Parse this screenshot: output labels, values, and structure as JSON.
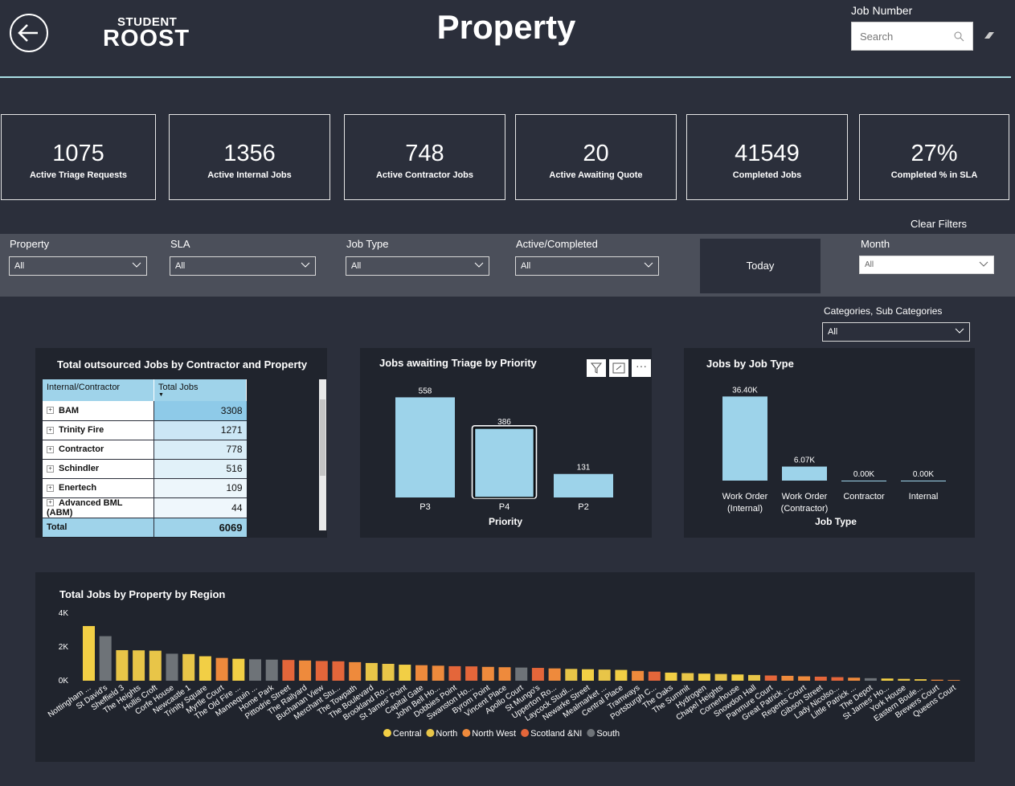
{
  "header": {
    "logo_top": "STUDENT",
    "logo_bottom": "ROOST",
    "title": "Property",
    "search_label": "Job Number",
    "search_placeholder": "Search"
  },
  "kpis": [
    {
      "value": 1075,
      "label": "Active Triage Requests"
    },
    {
      "value": 1356,
      "label": "Active Internal Jobs"
    },
    {
      "value": 748,
      "label": "Active Contractor Jobs"
    },
    {
      "value": 20,
      "label": "Active Awaiting Quote"
    },
    {
      "value": 41549,
      "label": "Completed Jobs"
    },
    {
      "value": 27,
      "value_label": "27%",
      "label": "Completed % in SLA"
    }
  ],
  "clear_filters": "Clear Filters",
  "filters": [
    {
      "label": "Property",
      "value": "All"
    },
    {
      "label": "SLA",
      "value": "All"
    },
    {
      "label": "Job Type",
      "value": "All"
    },
    {
      "label": "Active/Completed",
      "value": "All"
    }
  ],
  "today_button": "Today",
  "month_filter": {
    "label": "Month",
    "value": "All"
  },
  "category_filter": {
    "label": "Categories, Sub Categories",
    "value": "All"
  },
  "table": {
    "title": "Total outsourced Jobs by Contractor and Property",
    "columns": [
      "Internal/Contractor",
      "Total Jobs"
    ],
    "rows": [
      [
        "BAM",
        3308
      ],
      [
        "Trinity Fire",
        1271
      ],
      [
        "Contractor",
        778
      ],
      [
        "Schindler",
        516
      ],
      [
        "Enertech",
        109
      ],
      [
        "Advanced BML (ABM)",
        44
      ]
    ],
    "total": [
      "Total",
      6069
    ]
  },
  "triage_chart": {
    "type": "bar",
    "title": "Jobs awaiting Triage by Priority",
    "x_label": "Priority",
    "categories": [
      "P3",
      "P4",
      "P2"
    ],
    "values": [
      558,
      386,
      131
    ],
    "color": "#9dd3ea",
    "ylim": [
      0,
      600
    ]
  },
  "jobtype_chart": {
    "type": "bar",
    "title": "Jobs by Job Type",
    "x_label": "Job Type",
    "categories": [
      "Work Order (Internal)",
      "Work Order (Contractor)",
      "Contractor",
      "Internal"
    ],
    "values": [
      36400,
      6070,
      0,
      0
    ],
    "value_labels": [
      "36.40K",
      "6.07K",
      "0.00K",
      "0.00K"
    ],
    "color": "#9dd3ea",
    "ylim": [
      0,
      40000
    ]
  },
  "region_chart": {
    "type": "bar",
    "title": "Total Jobs by Property by Region",
    "categories": [
      "Nottingham ...",
      "St David's",
      "Sheffield 3",
      "The Heights",
      "Hollis Croft",
      "Corfe House",
      "Newcastle 1",
      "Trinity Square",
      "Myrtle Court",
      "The Old Fire ...",
      "Mannequin ...",
      "Home Park",
      "Pittodrie Street",
      "The Railyard",
      "Buchanan View",
      "Merchant Stu...",
      "The Towpath",
      "The Boulevard",
      "Brookland Ro...",
      "St James' Point",
      "Capital Gate",
      "John Bell Ho...",
      "Dobbies Point",
      "Swanston Ho...",
      "Byrom Point",
      "Vincent Place",
      "Apollo Court",
      "St Mungo's",
      "Upperton Ro...",
      "Laycock Studi...",
      "Newarke Street",
      "Mealmarket ...",
      "Central Place",
      "Tramways",
      "Portsburgh C...",
      "The Oaks",
      "The Summit",
      "Hydrogen",
      "Chapel Heights",
      "Cornerhouse",
      "Snowdon Hall",
      "Panmure Court",
      "Great Patrick ...",
      "Regents Court",
      "Gibson Street",
      "Lady Nicolso...",
      "Little Patrick ...",
      "The Depot",
      "St James' Ho...",
      "York House",
      "Eastern Boule...",
      "Brewers Court",
      "Queens Court"
    ],
    "series": [
      {
        "name": "Central",
        "color": "#f2cf45",
        "values": [
          3240,
          null,
          null,
          null,
          null,
          null,
          null,
          1450,
          null,
          1300,
          null,
          null,
          null,
          null,
          null,
          null,
          null,
          null,
          null,
          950,
          null,
          null,
          null,
          null,
          null,
          null,
          null,
          null,
          null,
          null,
          680,
          null,
          640,
          null,
          null,
          480,
          null,
          420,
          null,
          370,
          null,
          null,
          null,
          null,
          null,
          null,
          null,
          null,
          130,
          null,
          null,
          null,
          null
        ]
      },
      {
        "name": "North",
        "color": "#e8c548",
        "values": [
          null,
          null,
          1810,
          1800,
          1780,
          null,
          1580,
          null,
          null,
          null,
          null,
          null,
          null,
          null,
          null,
          null,
          null,
          1050,
          1000,
          null,
          null,
          null,
          null,
          null,
          null,
          null,
          null,
          null,
          null,
          700,
          null,
          660,
          null,
          null,
          null,
          null,
          450,
          null,
          400,
          null,
          340,
          null,
          null,
          null,
          null,
          null,
          null,
          null,
          null,
          110,
          90,
          null,
          null
        ]
      },
      {
        "name": "North West",
        "color": "#ee8a3c",
        "values": [
          null,
          null,
          null,
          null,
          null,
          null,
          null,
          null,
          1350,
          null,
          null,
          null,
          null,
          1200,
          null,
          null,
          1100,
          null,
          null,
          null,
          920,
          890,
          null,
          null,
          820,
          800,
          null,
          null,
          730,
          null,
          null,
          null,
          null,
          580,
          null,
          null,
          null,
          null,
          null,
          null,
          null,
          null,
          290,
          260,
          null,
          null,
          180,
          null,
          null,
          null,
          null,
          60,
          40
        ]
      },
      {
        "name": "Scotland &NI",
        "color": "#e4663a",
        "values": [
          null,
          null,
          null,
          null,
          null,
          null,
          null,
          null,
          null,
          null,
          null,
          null,
          1230,
          null,
          1170,
          1150,
          null,
          null,
          null,
          null,
          null,
          null,
          860,
          850,
          null,
          null,
          null,
          760,
          null,
          null,
          null,
          null,
          null,
          null,
          540,
          null,
          null,
          null,
          null,
          null,
          null,
          310,
          null,
          null,
          240,
          210,
          null,
          null,
          null,
          null,
          null,
          null,
          null
        ]
      },
      {
        "name": "South",
        "color": "#6e7378",
        "values": [
          null,
          2640,
          null,
          null,
          null,
          1600,
          null,
          null,
          null,
          null,
          1270,
          1250,
          null,
          null,
          null,
          null,
          null,
          null,
          null,
          null,
          null,
          null,
          null,
          null,
          null,
          null,
          780,
          null,
          null,
          null,
          null,
          null,
          null,
          null,
          null,
          null,
          null,
          null,
          null,
          null,
          null,
          null,
          null,
          null,
          null,
          null,
          null,
          150,
          null,
          null,
          null,
          null,
          null
        ]
      }
    ],
    "ylim": [
      0,
      4000
    ],
    "yticks": [
      {
        "value": 0,
        "label": "0K"
      },
      {
        "value": 2000,
        "label": "2K"
      },
      {
        "value": 4000,
        "label": "4K"
      }
    ]
  }
}
